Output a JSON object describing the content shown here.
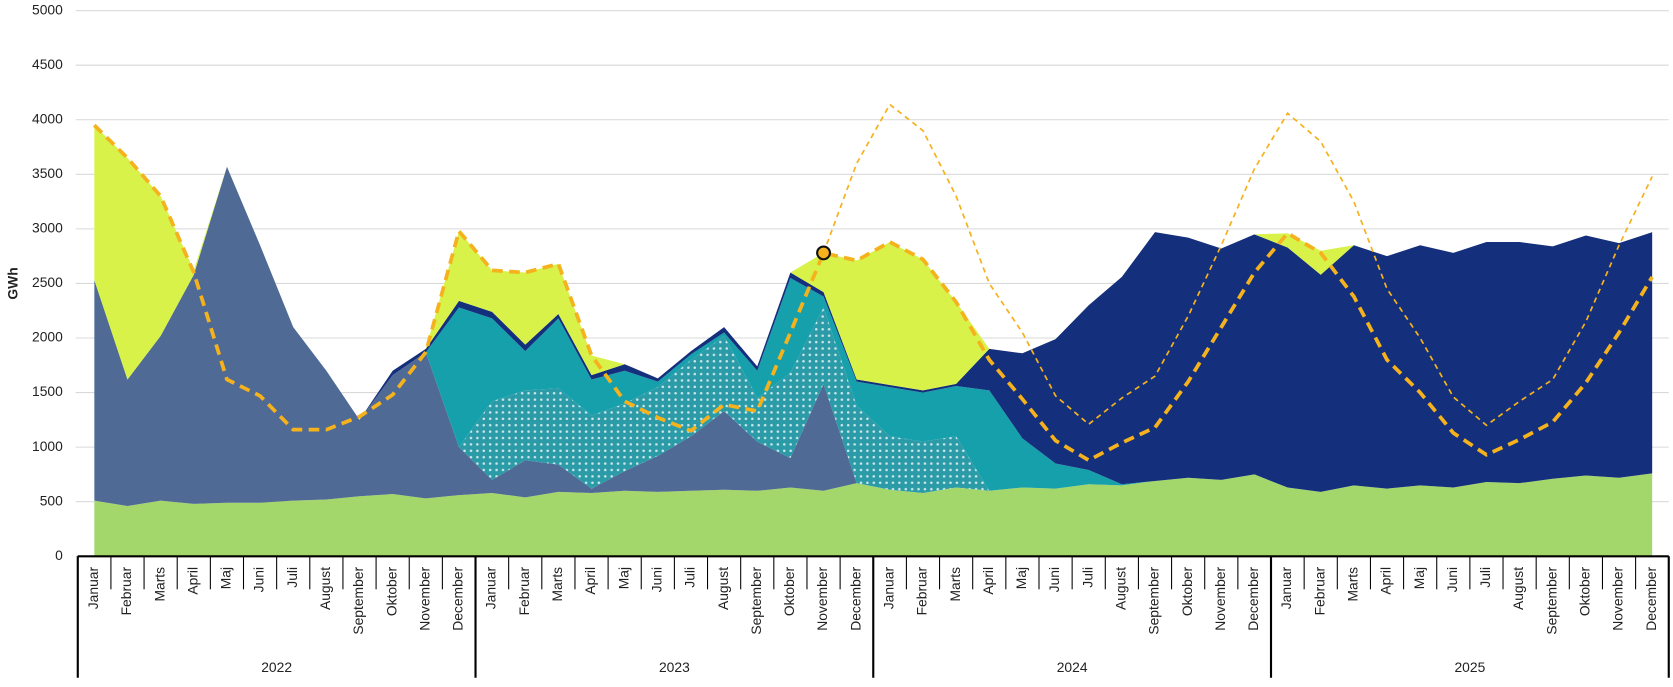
{
  "chart_data": {
    "type": "area",
    "stacked": true,
    "y_label": "GWh",
    "categories": [
      "Januar",
      "Februar",
      "Marts",
      "April",
      "Maj",
      "Juni",
      "Juli",
      "August",
      "September",
      "Oktober",
      "November",
      "December",
      "Januar",
      "Februar",
      "Marts",
      "April",
      "Maj",
      "Juni",
      "Juli",
      "August",
      "September",
      "Oktober",
      "November",
      "December",
      "Januar",
      "Februar",
      "Marts",
      "April",
      "Maj",
      "Juni",
      "Juli",
      "August",
      "September",
      "Oktober",
      "November",
      "December",
      "Januar",
      "Februar",
      "Marts",
      "April",
      "Maj",
      "Juni",
      "Juli",
      "August",
      "September",
      "Oktober",
      "November",
      "December"
    ],
    "groups": [
      "2022",
      "2023",
      "2024",
      "2025"
    ],
    "ylim": [
      0,
      5000
    ],
    "yticks": [
      0,
      500,
      1000,
      1500,
      2000,
      2500,
      3000,
      3500,
      4000,
      4500,
      5000
    ],
    "grid": true,
    "series": [
      {
        "kind": "area",
        "color": "#a3d66b",
        "values": [
          510,
          460,
          510,
          480,
          490,
          490,
          510,
          520,
          550,
          570,
          530,
          560,
          580,
          540,
          590,
          580,
          600,
          590,
          600,
          610,
          600,
          630,
          600,
          670,
          610,
          580,
          630,
          600,
          630,
          620,
          660,
          650,
          690,
          720,
          700,
          750,
          630,
          590,
          650,
          620,
          650,
          630,
          680,
          670,
          710,
          740,
          720,
          760
        ]
      },
      {
        "kind": "area",
        "color": "#4f6a94",
        "values": [
          2020,
          1160,
          1510,
          2100,
          3080,
          2360,
          1590,
          1180,
          700,
          1090,
          1340,
          440,
          120,
          340,
          250,
          40,
          180,
          330,
          500,
          720,
          450,
          270,
          980,
          0,
          0,
          0,
          0,
          0,
          0,
          0,
          0,
          0,
          0,
          0,
          0,
          0,
          0,
          0,
          0,
          0,
          0,
          0,
          0,
          0,
          0,
          0,
          0,
          0
        ]
      },
      {
        "kind": "area",
        "color": "#2b9ba8",
        "pattern": "dots",
        "values": [
          0,
          0,
          0,
          0,
          0,
          0,
          0,
          0,
          0,
          0,
          0,
          0,
          720,
          640,
          700,
          670,
          620,
          630,
          700,
          690,
          400,
          780,
          700,
          710,
          490,
          470,
          470,
          0,
          0,
          0,
          0,
          0,
          0,
          0,
          0,
          0,
          0,
          0,
          0,
          0,
          0,
          0,
          0,
          0,
          0,
          0,
          0,
          0
        ]
      },
      {
        "kind": "area",
        "color": "#16a0ab",
        "values": [
          0,
          0,
          0,
          0,
          0,
          0,
          0,
          0,
          0,
          0,
          0,
          1280,
          760,
          360,
          640,
          330,
          300,
          50,
          50,
          30,
          250,
          870,
          100,
          220,
          450,
          450,
          460,
          920,
          450,
          230,
          130,
          10,
          0,
          0,
          0,
          0,
          0,
          0,
          0,
          0,
          0,
          0,
          0,
          0,
          0,
          0,
          0,
          0
        ]
      },
      {
        "kind": "area",
        "color": "#142f7c",
        "values": [
          0,
          0,
          0,
          0,
          0,
          0,
          0,
          0,
          0,
          40,
          30,
          60,
          60,
          60,
          40,
          40,
          60,
          30,
          30,
          50,
          40,
          50,
          40,
          20,
          20,
          20,
          20,
          380,
          780,
          1140,
          1510,
          1900,
          2280,
          2200,
          2120,
          2200,
          2200,
          1990,
          2200,
          2130,
          2200,
          2150,
          2200,
          2210,
          2130,
          2200,
          2150,
          2210
        ]
      },
      {
        "kind": "area",
        "color": "#d8f24a",
        "values": [
          1420,
          2030,
          1280,
          40,
          0,
          0,
          0,
          0,
          0,
          0,
          0,
          640,
          380,
          660,
          460,
          180,
          0,
          0,
          0,
          0,
          0,
          0,
          360,
          1090,
          1310,
          1200,
          750,
          0,
          0,
          0,
          0,
          0,
          0,
          0,
          0,
          0,
          130,
          220,
          0,
          0,
          0,
          0,
          0,
          0,
          0,
          0,
          0,
          0
        ]
      },
      {
        "kind": "line",
        "color": "#f5b21c",
        "values": [
          3950,
          3650,
          3300,
          2600,
          1620,
          1470,
          1160,
          1160,
          1280,
          1480,
          1870,
          2980,
          2620,
          2600,
          2680,
          1840,
          1420,
          1270,
          1150,
          1390,
          1330,
          2050,
          2780,
          2710,
          2880,
          2720,
          2330,
          1800,
          1440,
          1060,
          880,
          1040,
          1180,
          1600,
          2100,
          2600,
          2960,
          2780,
          2380,
          1800,
          1500,
          1130,
          930,
          1070,
          1230,
          1590,
          2050,
          2560
        ]
      },
      {
        "kind": "thin-line",
        "color": "#f5b21c",
        "values": [
          null,
          null,
          null,
          null,
          null,
          null,
          null,
          null,
          null,
          null,
          null,
          null,
          null,
          null,
          null,
          null,
          null,
          null,
          null,
          null,
          null,
          null,
          2780,
          3600,
          4140,
          3900,
          3300,
          2500,
          2050,
          1470,
          1210,
          1450,
          1650,
          2200,
          2850,
          3550,
          4060,
          3800,
          3250,
          2450,
          2000,
          1460,
          1200,
          1420,
          1620,
          2150,
          2850,
          3480
        ]
      },
      {
        "kind": "point",
        "color": "#f5b21c",
        "values": [
          null,
          null,
          null,
          null,
          null,
          null,
          null,
          null,
          null,
          null,
          null,
          null,
          null,
          null,
          null,
          null,
          null,
          null,
          null,
          null,
          null,
          null,
          2780,
          null,
          null,
          null,
          null,
          null,
          null,
          null,
          null,
          null,
          null,
          null,
          null,
          null,
          null,
          null,
          null,
          null,
          null,
          null,
          null,
          null,
          null,
          null,
          null,
          null
        ]
      }
    ]
  }
}
